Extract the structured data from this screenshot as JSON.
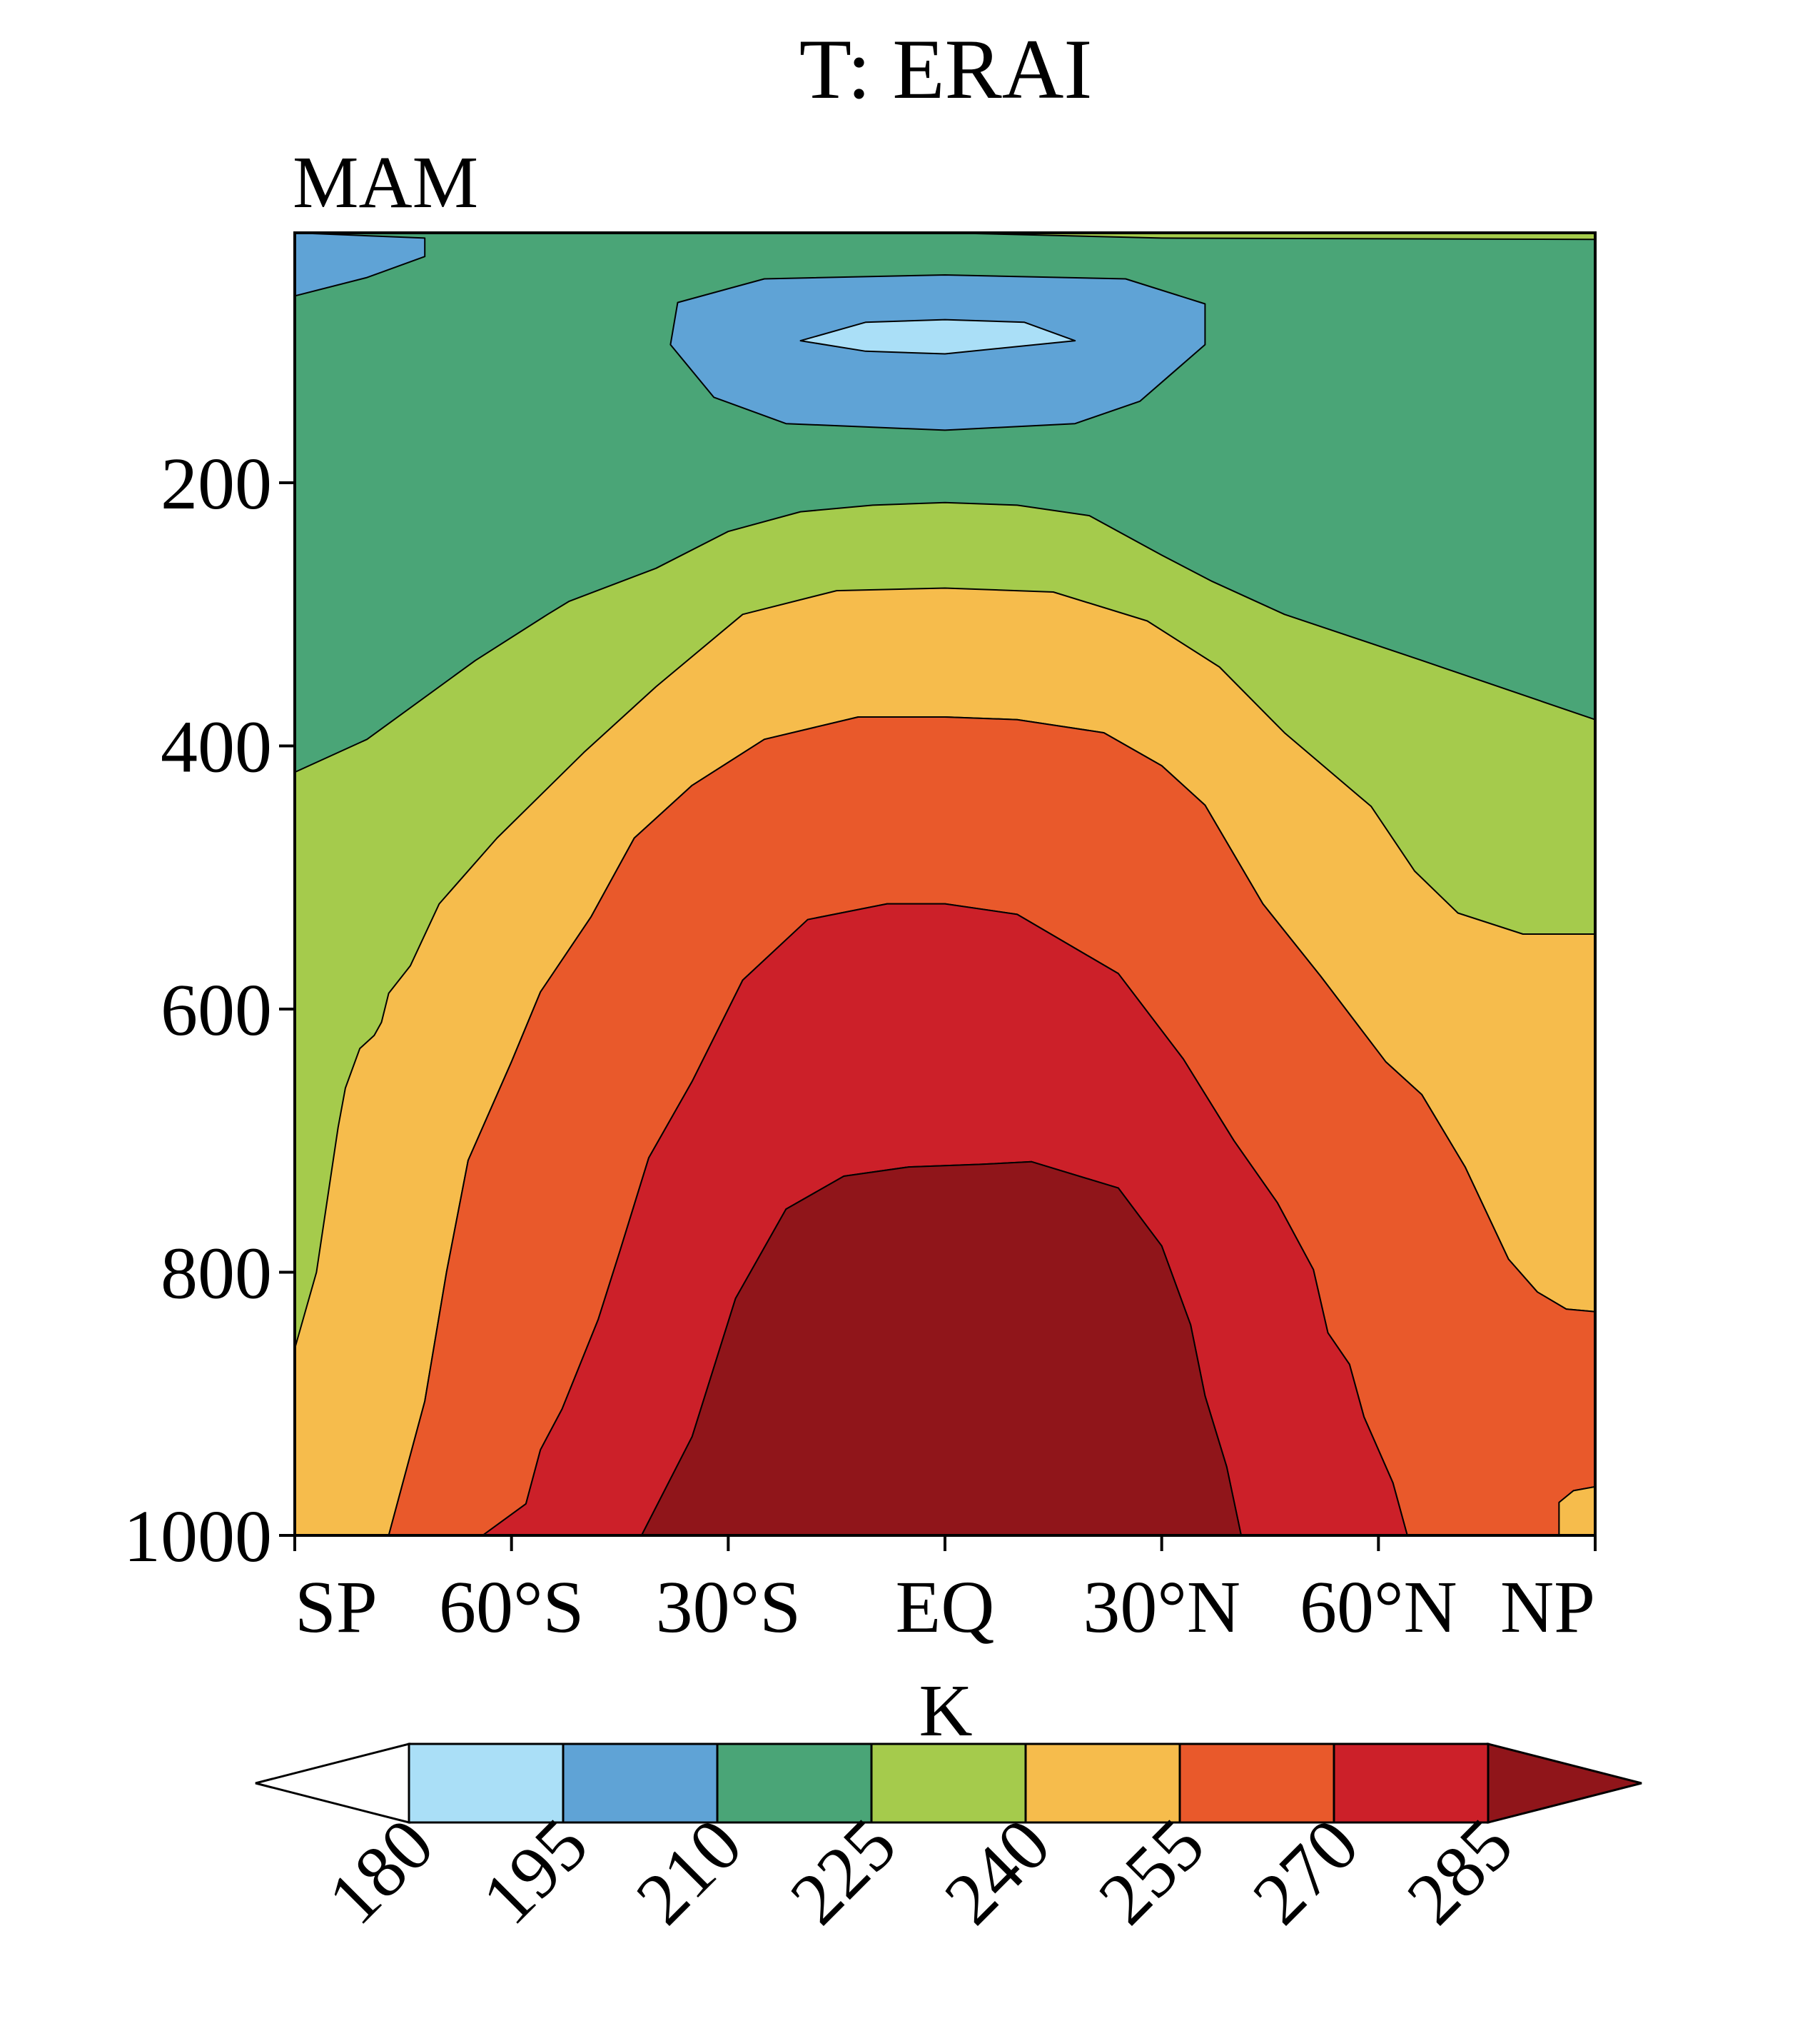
{
  "chart_data": {
    "type": "filled-contour",
    "title": "T: ERAI",
    "subtitle": "MAM",
    "xlabel": "",
    "ylabel": "",
    "x_ticks": [
      "SP",
      "60°S",
      "30°S",
      "EQ",
      "30°N",
      "60°N",
      "NP"
    ],
    "x_tick_values": [
      -90,
      -60,
      -30,
      0,
      30,
      60,
      90
    ],
    "xlim": [
      -90,
      90
    ],
    "y_ticks": [
      "200",
      "400",
      "600",
      "800",
      "1000"
    ],
    "y_tick_values": [
      200,
      400,
      600,
      800,
      1000
    ],
    "ylim": [
      10,
      1000
    ],
    "y_inverted": true,
    "units": "K",
    "levels": [
      180,
      195,
      210,
      225,
      240,
      255,
      270,
      285
    ],
    "level_labels": [
      "180",
      "195",
      "210",
      "225",
      "240",
      "255",
      "270",
      "285"
    ],
    "colors": [
      "#ffffff",
      "#aadff7",
      "#5fa3d6",
      "#4aa577",
      "#a5cb4c",
      "#f6bc4c",
      "#e9592b",
      "#cc2029",
      "#90151a"
    ],
    "regions": [
      {
        "name": "contour-fill-225-240",
        "color_index": 4,
        "points": [
          [
            -90,
            10
          ],
          [
            90,
            10
          ],
          [
            90,
            1000
          ],
          [
            -90,
            1000
          ]
        ]
      },
      {
        "name": "contour-fill-210-225",
        "color_index": 3,
        "points": [
          [
            -90,
            10
          ],
          [
            -40,
            10
          ],
          [
            0,
            10
          ],
          [
            30,
            14
          ],
          [
            90,
            15
          ],
          [
            90,
            380
          ],
          [
            66,
            335
          ],
          [
            47,
            300
          ],
          [
            37,
            275
          ],
          [
            30,
            255
          ],
          [
            20,
            225
          ],
          [
            10,
            217
          ],
          [
            0,
            215
          ],
          [
            -10,
            217
          ],
          [
            -20,
            222
          ],
          [
            -30,
            237
          ],
          [
            -40,
            265
          ],
          [
            -52,
            290
          ],
          [
            -55,
            300
          ],
          [
            -65,
            335
          ],
          [
            -80,
            395
          ],
          [
            -90,
            420
          ]
        ]
      },
      {
        "name": "contour-fill-195-210-sp",
        "color_index": 2,
        "points": [
          [
            -90,
            10
          ],
          [
            -72,
            14
          ],
          [
            -72,
            28
          ],
          [
            -80,
            44
          ],
          [
            -90,
            58
          ]
        ]
      },
      {
        "name": "contour-fill-195-210-eq",
        "color_index": 2,
        "points": [
          [
            -37,
            63
          ],
          [
            -25,
            45
          ],
          [
            0,
            42
          ],
          [
            25,
            45
          ],
          [
            36,
            64
          ],
          [
            36,
            95
          ],
          [
            27,
            138
          ],
          [
            18,
            155
          ],
          [
            0,
            160
          ],
          [
            -22,
            155
          ],
          [
            -32,
            135
          ],
          [
            -38,
            95
          ]
        ]
      },
      {
        "name": "contour-fill-180-195",
        "color_index": 1,
        "points": [
          [
            -20,
            92
          ],
          [
            -11,
            78
          ],
          [
            0,
            76
          ],
          [
            11,
            78
          ],
          [
            18,
            92
          ],
          [
            0,
            102
          ],
          [
            -11,
            100
          ]
        ]
      },
      {
        "name": "contour-fill-240-255",
        "color_index": 5,
        "points": [
          [
            -90,
            1000
          ],
          [
            -90,
            858
          ],
          [
            -87,
            800
          ],
          [
            -84,
            690
          ],
          [
            -83,
            660
          ],
          [
            -81,
            630
          ],
          [
            -79,
            620
          ],
          [
            -78,
            610
          ],
          [
            -77,
            588
          ],
          [
            -74,
            567
          ],
          [
            -70,
            520
          ],
          [
            -62,
            470
          ],
          [
            -50,
            405
          ],
          [
            -40,
            355
          ],
          [
            -28,
            300
          ],
          [
            -15,
            282
          ],
          [
            0,
            280
          ],
          [
            15,
            283
          ],
          [
            28,
            305
          ],
          [
            38,
            340
          ],
          [
            47,
            390
          ],
          [
            59,
            446
          ],
          [
            65,
            495
          ],
          [
            71,
            527
          ],
          [
            80,
            543
          ],
          [
            90,
            543
          ],
          [
            90,
            830
          ],
          [
            86,
            828
          ],
          [
            82,
            815
          ],
          [
            78,
            790
          ],
          [
            72,
            720
          ],
          [
            66,
            665
          ],
          [
            61,
            640
          ],
          [
            52,
            575
          ],
          [
            44,
            520
          ],
          [
            36,
            445
          ],
          [
            30,
            415
          ],
          [
            22,
            390
          ],
          [
            10,
            380
          ],
          [
            0,
            378
          ],
          [
            -12,
            378
          ],
          [
            -25,
            395
          ],
          [
            -35,
            430
          ],
          [
            -43,
            470
          ],
          [
            -49,
            530
          ],
          [
            -56,
            587
          ],
          [
            -60,
            640
          ],
          [
            -66,
            715
          ],
          [
            -69,
            800
          ],
          [
            -72,
            898
          ],
          [
            -77,
            1000
          ]
        ]
      },
      {
        "name": "contour-fill-255-270",
        "color_index": 6,
        "points": [
          [
            -77,
            1000
          ],
          [
            -72,
            898
          ],
          [
            -69,
            800
          ],
          [
            -66,
            715
          ],
          [
            -60,
            640
          ],
          [
            -56,
            587
          ],
          [
            -49,
            530
          ],
          [
            -43,
            470
          ],
          [
            -35,
            430
          ],
          [
            -25,
            395
          ],
          [
            -12,
            378
          ],
          [
            0,
            378
          ],
          [
            10,
            380
          ],
          [
            22,
            390
          ],
          [
            30,
            415
          ],
          [
            36,
            445
          ],
          [
            44,
            520
          ],
          [
            52,
            575
          ],
          [
            61,
            640
          ],
          [
            66,
            665
          ],
          [
            72,
            720
          ],
          [
            78,
            790
          ],
          [
            82,
            815
          ],
          [
            86,
            828
          ],
          [
            90,
            830
          ],
          [
            90,
            963
          ],
          [
            87,
            966
          ],
          [
            85,
            975
          ],
          [
            85,
            1000
          ],
          [
            64,
            1000
          ],
          [
            62,
            960
          ],
          [
            58,
            910
          ],
          [
            56,
            870
          ],
          [
            53,
            846
          ],
          [
            51,
            798
          ],
          [
            46,
            747
          ],
          [
            40,
            700
          ],
          [
            33,
            638
          ],
          [
            24,
            573
          ],
          [
            10,
            528
          ],
          [
            0,
            520
          ],
          [
            -8,
            520
          ],
          [
            -19,
            532
          ],
          [
            -28,
            578
          ],
          [
            -35,
            655
          ],
          [
            -41,
            713
          ],
          [
            -45,
            784
          ],
          [
            -48,
            836
          ],
          [
            -53,
            904
          ],
          [
            -56,
            935
          ],
          [
            -58,
            976
          ],
          [
            -64,
            1000
          ]
        ]
      },
      {
        "name": "contour-fill-240-255-np",
        "color_index": 5,
        "points": [
          [
            90,
            963
          ],
          [
            87,
            966
          ],
          [
            85,
            975
          ],
          [
            85,
            1000
          ],
          [
            90,
            1000
          ]
        ]
      },
      {
        "name": "contour-fill-270-285",
        "color_index": 7,
        "points": [
          [
            -64,
            1000
          ],
          [
            -58,
            976
          ],
          [
            -56,
            935
          ],
          [
            -53,
            904
          ],
          [
            -48,
            836
          ],
          [
            -45,
            784
          ],
          [
            -41,
            713
          ],
          [
            -35,
            655
          ],
          [
            -28,
            578
          ],
          [
            -19,
            532
          ],
          [
            -8,
            520
          ],
          [
            0,
            520
          ],
          [
            10,
            528
          ],
          [
            24,
            573
          ],
          [
            33,
            638
          ],
          [
            40,
            700
          ],
          [
            46,
            747
          ],
          [
            51,
            798
          ],
          [
            53,
            846
          ],
          [
            56,
            870
          ],
          [
            58,
            910
          ],
          [
            62,
            960
          ],
          [
            64,
            1000
          ],
          [
            41,
            1000
          ],
          [
            39,
            948
          ],
          [
            36,
            894
          ],
          [
            34,
            840
          ],
          [
            30,
            780
          ],
          [
            24,
            736
          ],
          [
            12,
            716
          ],
          [
            5,
            718
          ],
          [
            -5,
            720
          ],
          [
            -14,
            727
          ],
          [
            -22,
            752
          ],
          [
            -29,
            820
          ],
          [
            -35,
            925
          ],
          [
            -42,
            1000
          ]
        ]
      },
      {
        "name": "contour-fill-285-plus",
        "color_index": 8,
        "points": [
          [
            -42,
            1000
          ],
          [
            -35,
            925
          ],
          [
            -29,
            820
          ],
          [
            -22,
            752
          ],
          [
            -14,
            727
          ],
          [
            -5,
            720
          ],
          [
            5,
            718
          ],
          [
            12,
            716
          ],
          [
            24,
            736
          ],
          [
            30,
            780
          ],
          [
            34,
            840
          ],
          [
            36,
            894
          ],
          [
            39,
            948
          ],
          [
            41,
            1000
          ]
        ]
      }
    ]
  }
}
